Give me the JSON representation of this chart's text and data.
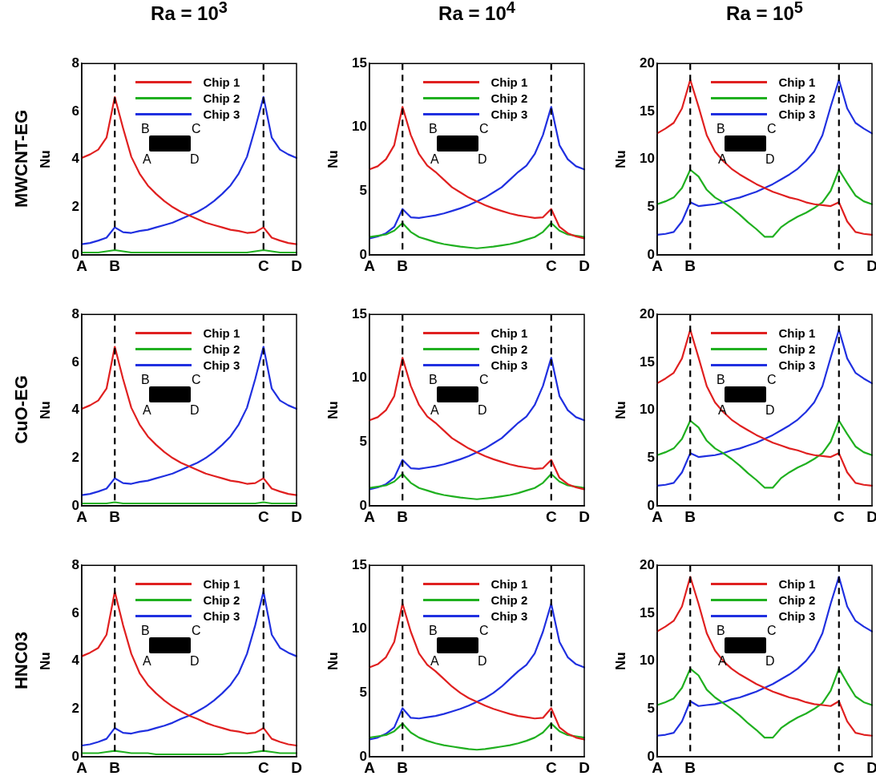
{
  "chart_data": [
    {
      "type": "line",
      "title": "Ra = 10$^{3}$",
      "subtitle": "MWCNT-EG",
      "ylabel": "Nu",
      "legend": "top",
      "categories": [
        "A",
        null,
        null,
        null,
        "B",
        null,
        null,
        null,
        null,
        null,
        null,
        null,
        null,
        null,
        null,
        null,
        null,
        null,
        null,
        null,
        null,
        null,
        "C",
        null,
        null,
        null,
        "D"
      ],
      "ylim": [
        0,
        8
      ],
      "yticks": [
        0,
        2,
        4,
        6,
        8
      ],
      "ref_lines": [
        {
          "axis": "x",
          "value": "B",
          "color": "#000000",
          "line_style": "dashed"
        },
        {
          "axis": "x",
          "value": "C",
          "color": "#000000",
          "line_style": "dashed"
        }
      ],
      "annotations": [
        "B",
        "C",
        "A",
        "D"
      ],
      "series": [
        {
          "name": "Chip 1",
          "color": "#e02020",
          "values": [
            4.05,
            4.2,
            4.4,
            4.9,
            6.6,
            5.3,
            4.1,
            3.4,
            2.9,
            2.55,
            2.25,
            2.0,
            1.8,
            1.65,
            1.5,
            1.35,
            1.25,
            1.15,
            1.05,
            1.0,
            0.92,
            0.95,
            1.15,
            0.72,
            0.6,
            0.5,
            0.45
          ]
        },
        {
          "name": "Chip 2",
          "color": "#20b020",
          "values": [
            0.1,
            0.1,
            0.1,
            0.15,
            0.2,
            0.15,
            0.1,
            0.1,
            0.1,
            0.1,
            0.1,
            0.1,
            0.1,
            0.1,
            0.1,
            0.1,
            0.1,
            0.1,
            0.1,
            0.1,
            0.1,
            0.15,
            0.2,
            0.15,
            0.1,
            0.1,
            0.1
          ]
        },
        {
          "name": "Chip 3",
          "color": "#2030e0",
          "values": [
            0.45,
            0.5,
            0.6,
            0.72,
            1.15,
            0.95,
            0.92,
            1.0,
            1.05,
            1.15,
            1.25,
            1.35,
            1.5,
            1.65,
            1.8,
            2.0,
            2.25,
            2.55,
            2.9,
            3.4,
            4.1,
            5.3,
            6.6,
            4.9,
            4.4,
            4.2,
            4.05
          ]
        }
      ]
    },
    {
      "type": "line",
      "title": "Ra = 10$^{4}$",
      "ylabel": "Nu",
      "legend": "top",
      "categories": [
        "A",
        null,
        null,
        null,
        "B",
        null,
        null,
        null,
        null,
        null,
        null,
        null,
        null,
        null,
        null,
        null,
        null,
        null,
        null,
        null,
        null,
        null,
        "C",
        null,
        null,
        null,
        "D"
      ],
      "ylim": [
        0,
        15
      ],
      "yticks": [
        0,
        5,
        10,
        15
      ],
      "ref_lines": [
        {
          "axis": "x",
          "value": "B",
          "color": "#000000",
          "line_style": "dashed"
        },
        {
          "axis": "x",
          "value": "C",
          "color": "#000000",
          "line_style": "dashed"
        }
      ],
      "annotations": [
        "B",
        "C",
        "A",
        "D"
      ],
      "series": [
        {
          "name": "Chip 1",
          "color": "#e02020",
          "values": [
            6.7,
            6.95,
            7.5,
            8.6,
            11.6,
            9.4,
            7.9,
            7.0,
            6.5,
            5.9,
            5.3,
            4.9,
            4.5,
            4.2,
            3.9,
            3.65,
            3.45,
            3.25,
            3.1,
            3.0,
            2.9,
            2.95,
            3.6,
            2.2,
            1.7,
            1.45,
            1.3
          ]
        },
        {
          "name": "Chip 2",
          "color": "#20b020",
          "values": [
            1.4,
            1.5,
            1.6,
            1.9,
            2.5,
            1.8,
            1.4,
            1.2,
            1.0,
            0.85,
            0.75,
            0.65,
            0.58,
            0.52,
            0.58,
            0.65,
            0.75,
            0.85,
            1.0,
            1.2,
            1.4,
            1.8,
            2.5,
            1.9,
            1.6,
            1.5,
            1.4
          ]
        },
        {
          "name": "Chip 3",
          "color": "#2030e0",
          "values": [
            1.3,
            1.45,
            1.7,
            2.2,
            3.6,
            2.95,
            2.9,
            3.0,
            3.1,
            3.25,
            3.45,
            3.65,
            3.9,
            4.2,
            4.5,
            4.9,
            5.3,
            5.9,
            6.5,
            7.0,
            7.9,
            9.4,
            11.6,
            8.6,
            7.5,
            6.95,
            6.7
          ]
        }
      ]
    },
    {
      "type": "line",
      "title": "Ra = 10$^{5}$",
      "ylabel": "Nu",
      "legend": "top",
      "categories": [
        "A",
        null,
        null,
        null,
        "B",
        null,
        null,
        null,
        null,
        null,
        null,
        null,
        null,
        null,
        null,
        null,
        null,
        null,
        null,
        null,
        null,
        null,
        "C",
        null,
        null,
        null,
        "D"
      ],
      "ylim": [
        0,
        20
      ],
      "yticks": [
        0,
        5,
        10,
        15,
        20
      ],
      "ref_lines": [
        {
          "axis": "x",
          "value": "B",
          "color": "#000000",
          "line_style": "dashed"
        },
        {
          "axis": "x",
          "value": "C",
          "color": "#000000",
          "line_style": "dashed"
        }
      ],
      "annotations": [
        "B",
        "C",
        "A",
        "D"
      ],
      "series": [
        {
          "name": "Chip 1",
          "color": "#e02020",
          "values": [
            12.7,
            13.2,
            13.8,
            15.3,
            18.3,
            15.5,
            12.5,
            10.8,
            9.8,
            9.0,
            8.4,
            7.9,
            7.4,
            7.0,
            6.6,
            6.3,
            6.0,
            5.8,
            5.5,
            5.3,
            5.2,
            5.1,
            5.5,
            3.5,
            2.4,
            2.2,
            2.1
          ]
        },
        {
          "name": "Chip 2",
          "color": "#20b020",
          "values": [
            5.3,
            5.6,
            6.0,
            7.0,
            8.9,
            8.2,
            6.8,
            6.0,
            5.5,
            4.9,
            4.2,
            3.4,
            2.7,
            1.9,
            1.9,
            2.9,
            3.5,
            4.0,
            4.4,
            4.9,
            5.5,
            6.7,
            8.9,
            7.5,
            6.2,
            5.6,
            5.3
          ]
        },
        {
          "name": "Chip 3",
          "color": "#2030e0",
          "values": [
            2.1,
            2.2,
            2.4,
            3.5,
            5.5,
            5.1,
            5.2,
            5.3,
            5.5,
            5.8,
            6.0,
            6.3,
            6.6,
            7.0,
            7.4,
            7.9,
            8.4,
            9.0,
            9.8,
            10.8,
            12.5,
            15.5,
            18.3,
            15.3,
            13.8,
            13.2,
            12.7
          ]
        }
      ]
    },
    {
      "type": "line",
      "subtitle": "CuO-EG",
      "ylabel": "Nu",
      "legend": "top",
      "categories": [
        "A",
        null,
        null,
        null,
        "B",
        null,
        null,
        null,
        null,
        null,
        null,
        null,
        null,
        null,
        null,
        null,
        null,
        null,
        null,
        null,
        null,
        null,
        "C",
        null,
        null,
        null,
        "D"
      ],
      "ylim": [
        0,
        8
      ],
      "yticks": [
        0,
        2,
        4,
        6,
        8
      ],
      "ref_lines": [
        {
          "axis": "x",
          "value": "B",
          "color": "#000000",
          "line_style": "dashed"
        },
        {
          "axis": "x",
          "value": "C",
          "color": "#000000",
          "line_style": "dashed"
        }
      ],
      "annotations": [
        "B",
        "C",
        "A",
        "D"
      ],
      "series": [
        {
          "name": "Chip 1",
          "color": "#e02020",
          "values": [
            4.05,
            4.2,
            4.4,
            4.9,
            6.65,
            5.3,
            4.1,
            3.4,
            2.9,
            2.55,
            2.25,
            2.0,
            1.8,
            1.65,
            1.5,
            1.35,
            1.25,
            1.15,
            1.05,
            1.0,
            0.92,
            0.95,
            1.15,
            0.72,
            0.6,
            0.5,
            0.45
          ]
        },
        {
          "name": "Chip 2",
          "color": "#20b020",
          "values": [
            0.1,
            0.1,
            0.1,
            0.1,
            0.15,
            0.1,
            0.1,
            0.1,
            0.1,
            0.1,
            0.1,
            0.1,
            0.1,
            0.1,
            0.1,
            0.1,
            0.1,
            0.1,
            0.1,
            0.1,
            0.1,
            0.1,
            0.15,
            0.1,
            0.1,
            0.1,
            0.1
          ]
        },
        {
          "name": "Chip 3",
          "color": "#2030e0",
          "values": [
            0.45,
            0.5,
            0.6,
            0.72,
            1.15,
            0.95,
            0.92,
            1.0,
            1.05,
            1.15,
            1.25,
            1.35,
            1.5,
            1.65,
            1.8,
            2.0,
            2.25,
            2.55,
            2.9,
            3.4,
            4.1,
            5.3,
            6.65,
            4.9,
            4.4,
            4.2,
            4.05
          ]
        }
      ]
    },
    {
      "type": "line",
      "ylabel": "Nu",
      "legend": "top",
      "categories": [
        "A",
        null,
        null,
        null,
        "B",
        null,
        null,
        null,
        null,
        null,
        null,
        null,
        null,
        null,
        null,
        null,
        null,
        null,
        null,
        null,
        null,
        null,
        "C",
        null,
        null,
        null,
        "D"
      ],
      "ylim": [
        0,
        15
      ],
      "yticks": [
        0,
        5,
        10,
        15
      ],
      "ref_lines": [
        {
          "axis": "x",
          "value": "B",
          "color": "#000000",
          "line_style": "dashed"
        },
        {
          "axis": "x",
          "value": "C",
          "color": "#000000",
          "line_style": "dashed"
        }
      ],
      "annotations": [
        "B",
        "C",
        "A",
        "D"
      ],
      "series": [
        {
          "name": "Chip 1",
          "color": "#e02020",
          "values": [
            6.7,
            6.95,
            7.5,
            8.6,
            11.6,
            9.4,
            7.9,
            7.0,
            6.5,
            5.9,
            5.3,
            4.9,
            4.5,
            4.2,
            3.9,
            3.65,
            3.45,
            3.25,
            3.1,
            3.0,
            2.9,
            2.95,
            3.6,
            2.2,
            1.7,
            1.45,
            1.3
          ]
        },
        {
          "name": "Chip 2",
          "color": "#20b020",
          "values": [
            1.4,
            1.5,
            1.6,
            1.9,
            2.5,
            1.8,
            1.4,
            1.2,
            1.0,
            0.85,
            0.75,
            0.65,
            0.58,
            0.52,
            0.58,
            0.65,
            0.75,
            0.85,
            1.0,
            1.2,
            1.4,
            1.8,
            2.5,
            1.9,
            1.6,
            1.5,
            1.4
          ]
        },
        {
          "name": "Chip 3",
          "color": "#2030e0",
          "values": [
            1.3,
            1.45,
            1.7,
            2.2,
            3.6,
            2.95,
            2.9,
            3.0,
            3.1,
            3.25,
            3.45,
            3.65,
            3.9,
            4.2,
            4.5,
            4.9,
            5.3,
            5.9,
            6.5,
            7.0,
            7.9,
            9.4,
            11.6,
            8.6,
            7.5,
            6.95,
            6.7
          ]
        }
      ]
    },
    {
      "type": "line",
      "ylabel": "Nu",
      "legend": "top",
      "categories": [
        "A",
        null,
        null,
        null,
        "B",
        null,
        null,
        null,
        null,
        null,
        null,
        null,
        null,
        null,
        null,
        null,
        null,
        null,
        null,
        null,
        null,
        null,
        "C",
        null,
        null,
        null,
        "D"
      ],
      "ylim": [
        0,
        20
      ],
      "yticks": [
        0,
        5,
        10,
        15,
        20
      ],
      "ref_lines": [
        {
          "axis": "x",
          "value": "B",
          "color": "#000000",
          "line_style": "dashed"
        },
        {
          "axis": "x",
          "value": "C",
          "color": "#000000",
          "line_style": "dashed"
        }
      ],
      "annotations": [
        "B",
        "C",
        "A",
        "D"
      ],
      "series": [
        {
          "name": "Chip 1",
          "color": "#e02020",
          "values": [
            12.8,
            13.3,
            13.9,
            15.4,
            18.4,
            15.5,
            12.5,
            10.8,
            9.8,
            9.0,
            8.4,
            7.9,
            7.4,
            7.0,
            6.6,
            6.3,
            6.0,
            5.8,
            5.5,
            5.3,
            5.2,
            5.1,
            5.5,
            3.5,
            2.4,
            2.2,
            2.1
          ]
        },
        {
          "name": "Chip 2",
          "color": "#20b020",
          "values": [
            5.3,
            5.6,
            6.0,
            7.0,
            8.9,
            8.2,
            6.8,
            6.0,
            5.5,
            4.9,
            4.2,
            3.4,
            2.7,
            1.9,
            1.9,
            2.9,
            3.5,
            4.0,
            4.4,
            4.9,
            5.5,
            6.7,
            8.9,
            7.5,
            6.2,
            5.6,
            5.3
          ]
        },
        {
          "name": "Chip 3",
          "color": "#2030e0",
          "values": [
            2.1,
            2.2,
            2.4,
            3.5,
            5.5,
            5.1,
            5.2,
            5.3,
            5.5,
            5.8,
            6.0,
            6.3,
            6.6,
            7.0,
            7.4,
            7.9,
            8.4,
            9.0,
            9.8,
            10.8,
            12.5,
            15.5,
            18.4,
            15.4,
            13.9,
            13.3,
            12.8
          ]
        }
      ]
    },
    {
      "type": "line",
      "subtitle": "HNC03",
      "ylabel": "Nu",
      "legend": "top",
      "categories": [
        "A",
        null,
        null,
        null,
        "B",
        null,
        null,
        null,
        null,
        null,
        null,
        null,
        null,
        null,
        null,
        null,
        null,
        null,
        null,
        null,
        null,
        null,
        "C",
        null,
        null,
        null,
        "D"
      ],
      "ylim": [
        0,
        8
      ],
      "yticks": [
        0,
        2,
        4,
        6,
        8
      ],
      "ref_lines": [
        {
          "axis": "x",
          "value": "B",
          "color": "#000000",
          "line_style": "dashed"
        },
        {
          "axis": "x",
          "value": "C",
          "color": "#000000",
          "line_style": "dashed"
        }
      ],
      "annotations": [
        "B",
        "C",
        "A",
        "D"
      ],
      "series": [
        {
          "name": "Chip 1",
          "color": "#e02020",
          "values": [
            4.2,
            4.35,
            4.55,
            5.1,
            6.9,
            5.5,
            4.3,
            3.5,
            3.0,
            2.65,
            2.35,
            2.1,
            1.9,
            1.72,
            1.58,
            1.42,
            1.3,
            1.2,
            1.1,
            1.05,
            0.97,
            1.0,
            1.2,
            0.75,
            0.62,
            0.52,
            0.47
          ]
        },
        {
          "name": "Chip 2",
          "color": "#20b020",
          "values": [
            0.15,
            0.15,
            0.15,
            0.2,
            0.25,
            0.2,
            0.15,
            0.15,
            0.15,
            0.1,
            0.1,
            0.1,
            0.1,
            0.1,
            0.1,
            0.1,
            0.1,
            0.1,
            0.15,
            0.15,
            0.15,
            0.2,
            0.25,
            0.2,
            0.15,
            0.15,
            0.15
          ]
        },
        {
          "name": "Chip 3",
          "color": "#2030e0",
          "values": [
            0.47,
            0.52,
            0.62,
            0.75,
            1.2,
            1.0,
            0.97,
            1.05,
            1.1,
            1.2,
            1.3,
            1.42,
            1.58,
            1.72,
            1.9,
            2.1,
            2.35,
            2.65,
            3.0,
            3.5,
            4.3,
            5.5,
            6.9,
            5.1,
            4.55,
            4.35,
            4.2
          ]
        }
      ]
    },
    {
      "type": "line",
      "ylabel": "Nu",
      "legend": "top",
      "categories": [
        "A",
        null,
        null,
        null,
        "B",
        null,
        null,
        null,
        null,
        null,
        null,
        null,
        null,
        null,
        null,
        null,
        null,
        null,
        null,
        null,
        null,
        null,
        "C",
        null,
        null,
        null,
        "D"
      ],
      "ylim": [
        0,
        15
      ],
      "yticks": [
        0,
        5,
        10,
        15
      ],
      "ref_lines": [
        {
          "axis": "x",
          "value": "B",
          "color": "#000000",
          "line_style": "dashed"
        },
        {
          "axis": "x",
          "value": "C",
          "color": "#000000",
          "line_style": "dashed"
        }
      ],
      "annotations": [
        "B",
        "C",
        "A",
        "D"
      ],
      "series": [
        {
          "name": "Chip 1",
          "color": "#e02020",
          "values": [
            7.0,
            7.25,
            7.8,
            9.0,
            12.0,
            9.8,
            8.1,
            7.2,
            6.7,
            6.1,
            5.5,
            5.0,
            4.6,
            4.3,
            4.0,
            3.75,
            3.55,
            3.35,
            3.2,
            3.1,
            3.0,
            3.05,
            3.8,
            2.3,
            1.8,
            1.5,
            1.35
          ]
        },
        {
          "name": "Chip 2",
          "color": "#20b020",
          "values": [
            1.5,
            1.6,
            1.7,
            2.0,
            2.6,
            1.9,
            1.5,
            1.25,
            1.05,
            0.9,
            0.8,
            0.7,
            0.6,
            0.55,
            0.6,
            0.7,
            0.8,
            0.9,
            1.05,
            1.25,
            1.5,
            1.9,
            2.6,
            2.0,
            1.7,
            1.6,
            1.5
          ]
        },
        {
          "name": "Chip 3",
          "color": "#2030e0",
          "values": [
            1.35,
            1.5,
            1.8,
            2.3,
            3.8,
            3.05,
            3.0,
            3.1,
            3.2,
            3.35,
            3.55,
            3.75,
            4.0,
            4.3,
            4.6,
            5.0,
            5.5,
            6.1,
            6.7,
            7.2,
            8.1,
            9.8,
            12.0,
            9.0,
            7.8,
            7.25,
            7.0
          ]
        }
      ]
    },
    {
      "type": "line",
      "ylabel": "Nu",
      "legend": "top",
      "categories": [
        "A",
        null,
        null,
        null,
        "B",
        null,
        null,
        null,
        null,
        null,
        null,
        null,
        null,
        null,
        null,
        null,
        null,
        null,
        null,
        null,
        null,
        null,
        "C",
        null,
        null,
        null,
        "D"
      ],
      "ylim": [
        0,
        20
      ],
      "yticks": [
        0,
        5,
        10,
        15,
        20
      ],
      "ref_lines": [
        {
          "axis": "x",
          "value": "B",
          "color": "#000000",
          "line_style": "dashed"
        },
        {
          "axis": "x",
          "value": "C",
          "color": "#000000",
          "line_style": "dashed"
        }
      ],
      "annotations": [
        "B",
        "C",
        "A",
        "D"
      ],
      "series": [
        {
          "name": "Chip 1",
          "color": "#e02020",
          "values": [
            13.1,
            13.6,
            14.2,
            15.7,
            18.8,
            16.0,
            12.9,
            11.1,
            10.0,
            9.2,
            8.6,
            8.1,
            7.6,
            7.2,
            6.8,
            6.5,
            6.2,
            6.0,
            5.7,
            5.5,
            5.4,
            5.3,
            5.8,
            3.7,
            2.5,
            2.3,
            2.2
          ]
        },
        {
          "name": "Chip 2",
          "color": "#20b020",
          "values": [
            5.4,
            5.7,
            6.1,
            7.2,
            9.2,
            8.5,
            7.0,
            6.2,
            5.6,
            5.0,
            4.3,
            3.5,
            2.8,
            2.0,
            2.0,
            3.0,
            3.6,
            4.1,
            4.5,
            5.0,
            5.6,
            6.9,
            9.2,
            7.7,
            6.3,
            5.7,
            5.4
          ]
        },
        {
          "name": "Chip 3",
          "color": "#2030e0",
          "values": [
            2.2,
            2.3,
            2.5,
            3.7,
            5.8,
            5.3,
            5.4,
            5.5,
            5.7,
            6.0,
            6.2,
            6.5,
            6.8,
            7.2,
            7.6,
            8.1,
            8.6,
            9.2,
            10.0,
            11.1,
            12.9,
            16.0,
            18.8,
            15.7,
            14.2,
            13.6,
            13.1
          ]
        }
      ]
    }
  ]
}
